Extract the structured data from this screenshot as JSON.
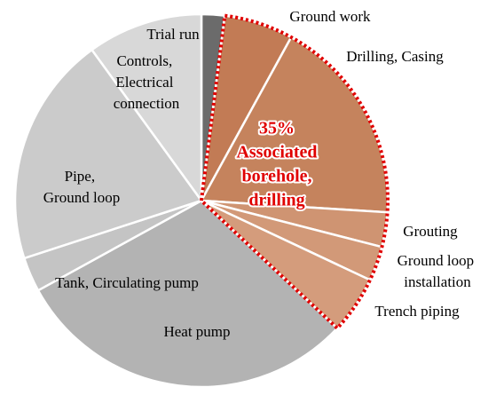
{
  "chart_data": {
    "type": "pie",
    "categories": [
      "Trial run",
      "Ground work",
      "Drilling, Casing",
      "Grouting",
      "Ground loop installation",
      "Trench piping",
      "Heat pump",
      "Tank, Circulating pump",
      "Pipe, Ground loop",
      "Controls, Electrical connection"
    ],
    "values": [
      2,
      6,
      18,
      3,
      3,
      5,
      30,
      3,
      20,
      10
    ],
    "colors": [
      "#6b6b6b",
      "#c27b55",
      "#c5835d",
      "#cf9472",
      "#d29978",
      "#d49c7c",
      "#b3b3b3",
      "#c4c4c4",
      "#cbcbcb",
      "#d8d8d8"
    ],
    "highlight": [
      1,
      2,
      3,
      4,
      5
    ],
    "highlight_color": "#e00000",
    "annotation": [
      "35%",
      "Associated",
      "borehole,",
      "drilling"
    ]
  }
}
